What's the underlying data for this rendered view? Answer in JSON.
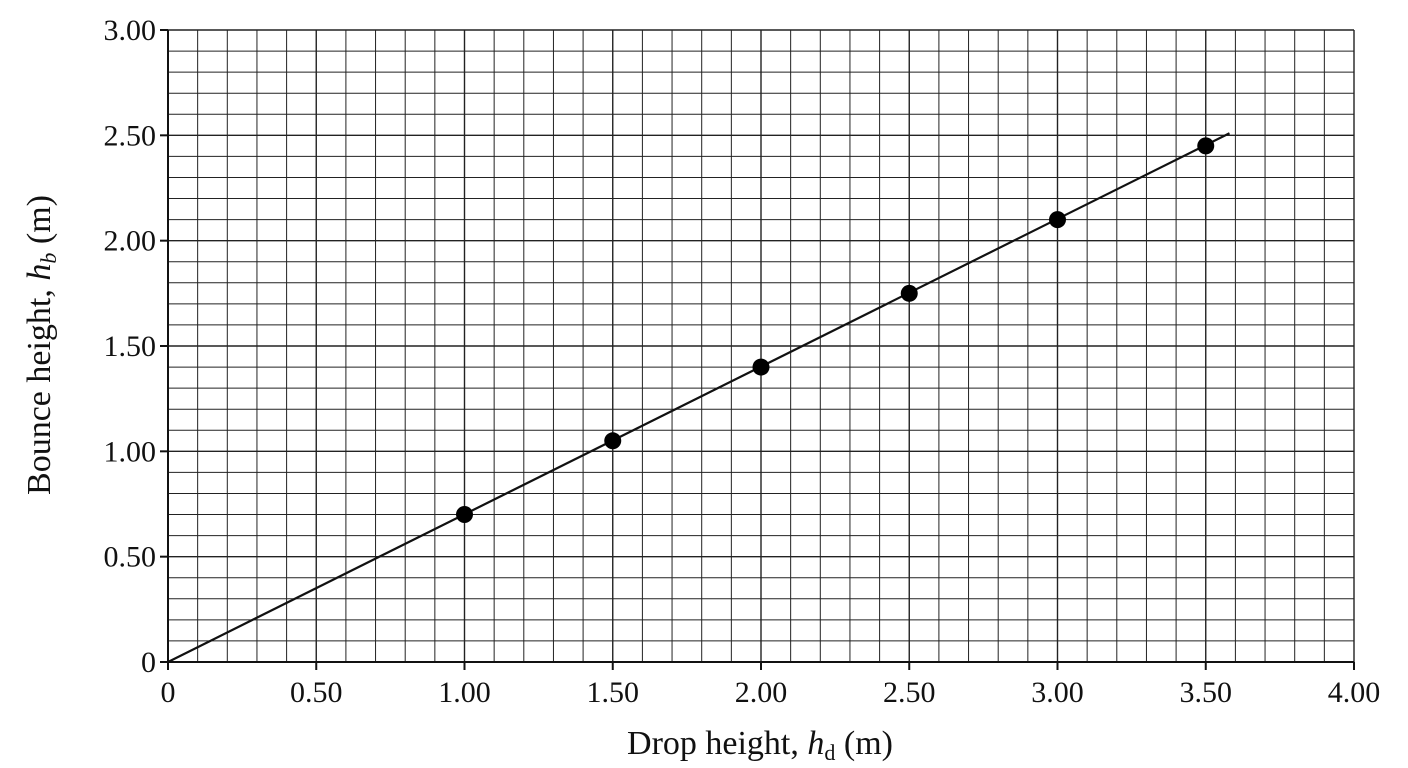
{
  "chart_data": {
    "type": "scatter",
    "title": "",
    "xlabel": {
      "prefix": "Drop height, ",
      "symbol": "h",
      "subscript": "d",
      "suffix": " (m)"
    },
    "ylabel": {
      "prefix": "Bounce height, ",
      "symbol": "h",
      "subscript": "b",
      "suffix": " (m)"
    },
    "xlim": [
      0,
      4.0
    ],
    "ylim": [
      0,
      3.0
    ],
    "x_ticks": [
      0,
      0.5,
      1.0,
      1.5,
      2.0,
      2.5,
      3.0,
      3.5,
      4.0
    ],
    "x_tick_labels": [
      "0",
      "0.50",
      "1.00",
      "1.50",
      "2.00",
      "2.50",
      "3.00",
      "3.50",
      "4.00"
    ],
    "y_ticks": [
      0,
      0.5,
      1.0,
      1.5,
      2.0,
      2.5,
      3.0
    ],
    "y_tick_labels": [
      "0",
      "0.50",
      "1.00",
      "1.50",
      "2.00",
      "2.50",
      "3.00"
    ],
    "grid": true,
    "minor_grid_step_x": 0.1,
    "minor_grid_step_y": 0.1,
    "series": [
      {
        "x": [
          1.0,
          1.5,
          2.0,
          2.5,
          3.0,
          3.5
        ],
        "y": [
          0.7,
          1.05,
          1.4,
          1.75,
          2.1,
          2.45
        ],
        "marker": "filled-circle",
        "color": "#000000"
      }
    ],
    "fit_line": {
      "x": [
        0,
        3.58
      ],
      "y": [
        0,
        2.51
      ],
      "color": "#000000"
    }
  }
}
